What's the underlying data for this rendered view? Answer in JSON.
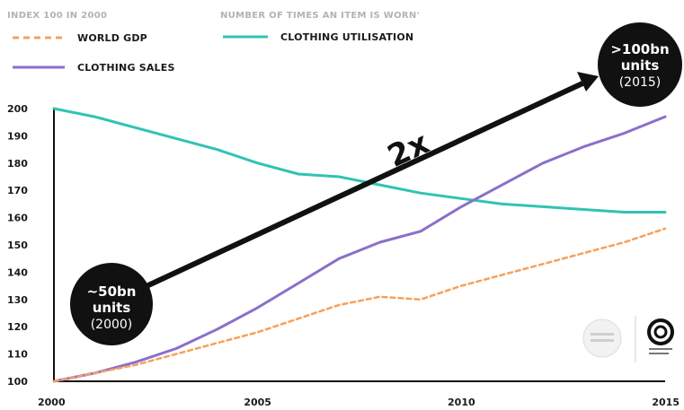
{
  "legend": {
    "index_heading": "INDEX 100 IN 2000",
    "utilisation_heading": "NUMBER OF TIMES AN ITEM IS WORN'",
    "gdp_label": "WORLD GDP",
    "sales_label": "CLOTHING SALES",
    "utilisation_label": "CLOTHING UTILISATION"
  },
  "annotations": {
    "start_line1": "~50bn",
    "start_line2": "units",
    "start_line3": "(2000)",
    "end_line1": ">100bn",
    "end_line2": "units",
    "end_line3": "(2015)",
    "multiplier": "2x"
  },
  "colors": {
    "gdp": "#f4a15d",
    "sales": "#8b6fc9",
    "utilisation": "#2fc4b2",
    "bubble": "#111111",
    "arrow": "#111111"
  },
  "chart_data": {
    "type": "line",
    "xlim": [
      2000,
      2015
    ],
    "ylim": [
      100,
      200
    ],
    "x_ticks": [
      2000,
      2005,
      2010,
      2015
    ],
    "y_ticks": [
      100,
      110,
      120,
      130,
      140,
      150,
      160,
      170,
      180,
      190,
      200
    ],
    "grid": false,
    "legend_position": "top-left",
    "series": [
      {
        "name": "CLOTHING UTILISATION",
        "style": "solid",
        "x": [
          2000,
          2001,
          2002,
          2003,
          2004,
          2005,
          2006,
          2007,
          2008,
          2009,
          2010,
          2011,
          2012,
          2013,
          2014,
          2015
        ],
        "values": [
          200,
          197,
          193,
          189,
          185,
          180,
          176,
          175,
          172,
          169,
          167,
          165,
          164,
          163,
          162,
          162
        ]
      },
      {
        "name": "CLOTHING SALES",
        "style": "solid",
        "x": [
          2000,
          2001,
          2002,
          2003,
          2004,
          2005,
          2006,
          2007,
          2008,
          2009,
          2010,
          2011,
          2012,
          2013,
          2014,
          2015
        ],
        "values": [
          100,
          103,
          107,
          112,
          119,
          127,
          136,
          145,
          151,
          155,
          164,
          172,
          180,
          186,
          191,
          197
        ]
      },
      {
        "name": "WORLD GDP",
        "style": "dashed",
        "x": [
          2000,
          2001,
          2002,
          2003,
          2004,
          2005,
          2006,
          2007,
          2008,
          2009,
          2010,
          2011,
          2012,
          2013,
          2014,
          2015
        ],
        "values": [
          100,
          103,
          106,
          110,
          114,
          118,
          123,
          128,
          131,
          130,
          135,
          139,
          143,
          147,
          151,
          156
        ]
      }
    ]
  }
}
